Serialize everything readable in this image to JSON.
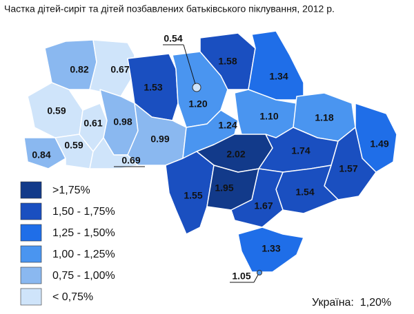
{
  "title": "Частка дітей-сиріт та дітей позбавлених батьківського піклування, 2012 р.",
  "regions": [
    {
      "label": "0.82",
      "color": "#8ab8f0"
    },
    {
      "label": "0.67",
      "color": "#cfe4fa"
    },
    {
      "label": "1.53",
      "color": "#1a4fc0"
    },
    {
      "label": "1.20",
      "color": "#4a95f0"
    },
    {
      "label": "1.58",
      "color": "#1a4fc0"
    },
    {
      "label": "1.34",
      "color": "#1f6ee8"
    },
    {
      "label": "0.59",
      "color": "#cfe4fa"
    },
    {
      "label": "0.61",
      "color": "#cfe4fa"
    },
    {
      "label": "0.98",
      "color": "#8ab8f0"
    },
    {
      "label": "0.84",
      "color": "#8ab8f0"
    },
    {
      "label": "0.59",
      "color": "#cfe4fa"
    },
    {
      "label": "0.69",
      "color": "#cfe4fa"
    },
    {
      "label": "0.99",
      "color": "#8ab8f0"
    },
    {
      "label": "1.24",
      "color": "#4a95f0"
    },
    {
      "label": "1.10",
      "color": "#4a95f0"
    },
    {
      "label": "1.18",
      "color": "#4a95f0"
    },
    {
      "label": "1.49",
      "color": "#1f6ee8"
    },
    {
      "label": "2.02",
      "color": "#123a8a"
    },
    {
      "label": "1.74",
      "color": "#1a4fc0"
    },
    {
      "label": "1.57",
      "color": "#1a4fc0"
    },
    {
      "label": "1.55",
      "color": "#1a4fc0"
    },
    {
      "label": "1.95",
      "color": "#123a8a"
    },
    {
      "label": "1.54",
      "color": "#1a4fc0"
    },
    {
      "label": "1.67",
      "color": "#1a4fc0"
    },
    {
      "label": "1.33",
      "color": "#1f6ee8"
    },
    {
      "label": "0.54",
      "color": "#cfe4fa"
    },
    {
      "label": "1.05",
      "color": "#4a95f0"
    }
  ],
  "legend": [
    {
      "label": ">1,75%",
      "color": "#123a8a"
    },
    {
      "label": "1,50 - 1,75%",
      "color": "#1a4fc0"
    },
    {
      "label": "1,25 - 1,50%",
      "color": "#1f6ee8"
    },
    {
      "label": "1,00 - 1,25%",
      "color": "#4a95f0"
    },
    {
      "label": "0,75 - 1,00%",
      "color": "#8ab8f0"
    },
    {
      "label": "< 0,75%",
      "color": "#cfe4fa"
    }
  ],
  "total": "Україна:  1,20%"
}
